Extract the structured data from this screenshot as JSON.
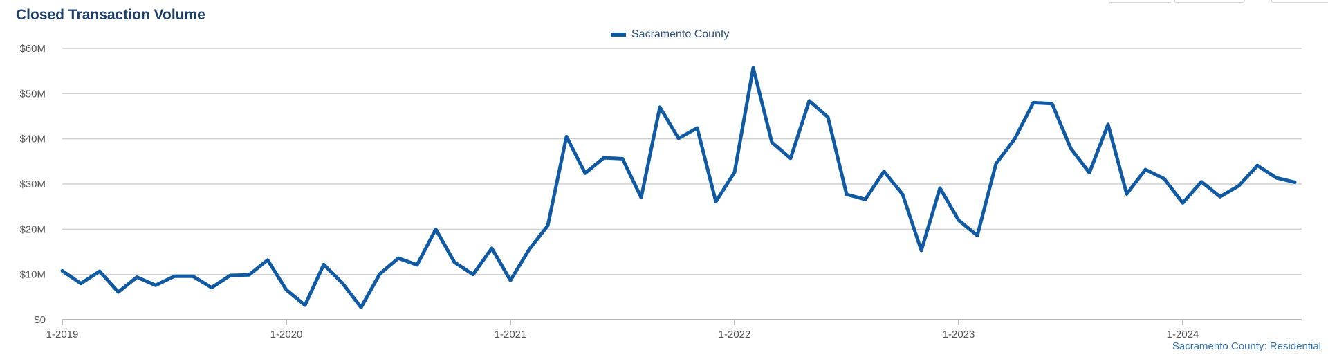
{
  "title": "Closed Transaction Volume",
  "source": "Sacramento County: Residential",
  "colors": {
    "series": "#0f5aa3",
    "grid": "#c8c8c8",
    "title": "#1d3f6b"
  },
  "chart_data": {
    "type": "line",
    "title": "Closed Transaction Volume",
    "y_ticks": [
      "$0",
      "$10M",
      "$20M",
      "$30M",
      "$40M",
      "$50M",
      "$60M"
    ],
    "x_ticks": [
      "1-2019",
      "1-2020",
      "1-2021",
      "1-2022",
      "1-2023",
      "1-2024"
    ],
    "ylim": [
      0,
      60
    ],
    "y_unit": "$M",
    "grid": true,
    "legend_position": "top-center",
    "x": [
      "1-2019",
      "2-2019",
      "3-2019",
      "4-2019",
      "5-2019",
      "6-2019",
      "7-2019",
      "8-2019",
      "9-2019",
      "10-2019",
      "11-2019",
      "12-2019",
      "1-2020",
      "2-2020",
      "3-2020",
      "4-2020",
      "5-2020",
      "6-2020",
      "7-2020",
      "8-2020",
      "9-2020",
      "10-2020",
      "11-2020",
      "12-2020",
      "1-2021",
      "2-2021",
      "3-2021",
      "4-2021",
      "5-2021",
      "6-2021",
      "7-2021",
      "8-2021",
      "9-2021",
      "10-2021",
      "11-2021",
      "12-2021",
      "1-2022",
      "2-2022",
      "3-2022",
      "4-2022",
      "5-2022",
      "6-2022",
      "7-2022",
      "8-2022",
      "9-2022",
      "10-2022",
      "11-2022",
      "12-2022",
      "1-2023",
      "2-2023",
      "3-2023",
      "4-2023",
      "5-2023",
      "6-2023",
      "7-2023",
      "8-2023",
      "9-2023",
      "10-2023",
      "11-2023",
      "12-2023",
      "1-2024",
      "2-2024",
      "3-2024",
      "4-2024",
      "5-2024",
      "6-2024",
      "7-2024"
    ],
    "series": [
      {
        "name": "Sacramento County",
        "values": [
          10.8,
          8.0,
          10.7,
          6.1,
          9.4,
          7.6,
          9.6,
          9.6,
          7.1,
          9.8,
          9.9,
          13.2,
          6.6,
          3.2,
          12.2,
          8.1,
          2.7,
          10.1,
          13.6,
          12.1,
          20.0,
          12.7,
          10.0,
          15.8,
          8.7,
          15.5,
          20.8,
          40.5,
          32.4,
          35.8,
          35.6,
          27.0,
          47.0,
          40.1,
          42.4,
          26.1,
          32.6,
          55.7,
          39.2,
          35.7,
          48.4,
          44.8,
          27.7,
          26.6,
          32.8,
          27.7,
          15.3,
          29.1,
          22.0,
          18.6,
          34.5,
          40.0,
          48.0,
          47.8,
          37.9,
          32.5,
          43.2,
          27.8,
          33.2,
          31.2,
          25.8,
          30.5,
          27.2,
          29.6,
          34.1,
          31.4,
          30.4
        ]
      }
    ]
  }
}
